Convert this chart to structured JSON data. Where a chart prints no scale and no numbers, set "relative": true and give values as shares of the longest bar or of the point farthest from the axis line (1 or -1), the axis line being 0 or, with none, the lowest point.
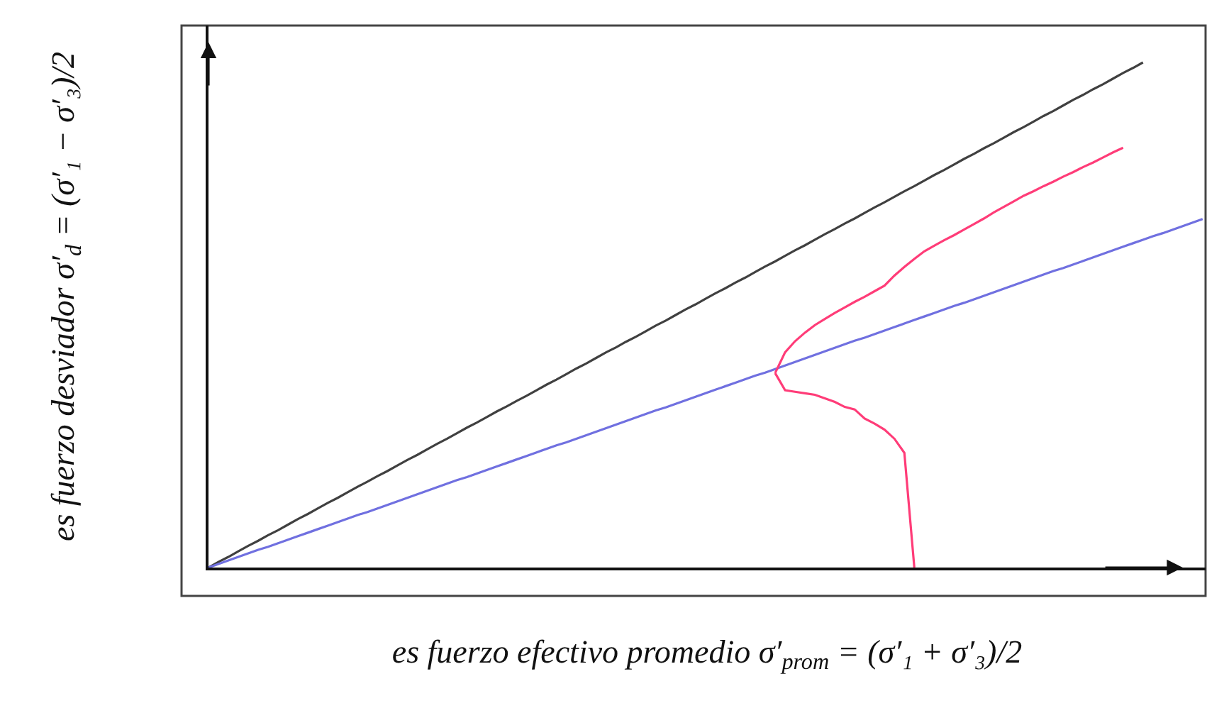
{
  "chart_data": {
    "type": "line",
    "relative": true,
    "xlabel": "es fuerzo efectivo promedio σ′$_{prom}$ = (σ′₁ + σ′₃)/2",
    "ylabel": "es fuerzo desviador σ′$_{d}$ = (σ′₁ − σ′₃)/2",
    "categories": [
      null,
      null,
      null,
      null,
      null,
      null,
      null,
      null,
      null,
      null,
      null,
      null,
      null,
      null,
      null,
      null,
      null,
      null,
      null,
      null,
      null,
      null,
      null,
      null,
      null,
      null,
      null,
      null,
      null,
      null,
      null,
      null,
      null,
      null,
      null,
      null,
      null,
      null,
      null,
      null,
      null,
      null,
      null,
      null,
      null,
      null,
      null,
      null,
      null,
      null,
      null,
      null,
      null,
      null,
      null,
      null,
      null,
      null,
      null,
      null,
      null,
      null,
      null,
      null,
      null,
      null,
      null,
      null,
      null,
      null,
      null,
      null,
      null,
      null,
      null,
      null,
      null,
      null,
      null,
      null,
      null,
      null,
      null,
      null,
      null,
      null,
      null,
      null,
      null,
      null,
      null,
      null,
      null,
      null,
      null,
      null,
      null,
      null,
      null,
      null,
      null
    ],
    "series": [
      {
        "color": "#404040",
        "values": [
          0,
          0.011,
          0.021,
          0.032,
          0.043,
          0.053,
          0.064,
          0.074,
          0.085,
          0.096,
          0.106,
          0.117,
          0.128,
          0.138,
          0.149,
          0.16,
          0.17,
          0.181,
          0.191,
          0.202,
          0.213,
          0.223,
          0.234,
          0.245,
          0.255,
          0.266,
          0.277,
          0.287,
          0.298,
          0.309,
          0.319,
          0.33,
          0.34,
          0.351,
          0.362,
          0.372,
          0.383,
          0.394,
          0.404,
          0.415,
          0.426,
          0.436,
          0.447,
          0.457,
          0.468,
          0.479,
          0.489,
          0.5,
          0.511,
          0.521,
          0.532,
          0.543,
          0.553,
          0.564,
          0.574,
          0.585,
          0.596,
          0.606,
          0.617,
          0.628,
          0.638,
          0.649,
          0.66,
          0.67,
          0.681,
          0.691,
          0.702,
          0.713,
          0.723,
          0.734,
          0.745,
          0.755,
          0.766,
          0.777,
          0.787,
          0.798,
          0.809,
          0.819,
          0.83,
          0.84,
          0.851,
          0.862,
          0.872,
          0.883,
          0.894,
          0.904,
          0.915,
          0.926,
          0.936,
          0.947,
          0.957,
          0.968,
          0.979,
          0.989,
          1.0,
          null,
          null,
          null,
          null,
          null,
          null
        ]
      },
      {
        "color": "#7070e0",
        "values": [
          0,
          0.007,
          0.014,
          0.021,
          0.028,
          0.035,
          0.041,
          0.048,
          0.055,
          0.062,
          0.069,
          0.076,
          0.083,
          0.09,
          0.097,
          0.104,
          0.11,
          0.117,
          0.124,
          0.131,
          0.138,
          0.145,
          0.152,
          0.159,
          0.166,
          0.173,
          0.179,
          0.186,
          0.193,
          0.2,
          0.207,
          0.214,
          0.221,
          0.228,
          0.235,
          0.242,
          0.248,
          0.255,
          0.262,
          0.269,
          0.276,
          0.283,
          0.29,
          0.297,
          0.304,
          0.311,
          0.317,
          0.324,
          0.331,
          0.338,
          0.345,
          0.352,
          0.359,
          0.366,
          0.373,
          0.38,
          0.386,
          0.393,
          0.4,
          0.407,
          0.414,
          0.421,
          0.428,
          0.435,
          0.442,
          0.449,
          0.455,
          0.462,
          0.469,
          0.476,
          0.483,
          0.49,
          0.497,
          0.504,
          0.511,
          0.518,
          0.524,
          0.531,
          0.538,
          0.545,
          0.552,
          0.559,
          0.566,
          0.573,
          0.58,
          0.587,
          0.593,
          0.6,
          0.607,
          0.614,
          0.621,
          0.628,
          0.635,
          0.642,
          0.649,
          0.656,
          0.662,
          0.669,
          0.676,
          0.683,
          0.69
        ]
      },
      {
        "color": "#ff3c78",
        "values": [
          null,
          null,
          null,
          null,
          null,
          null,
          null,
          null,
          null,
          null,
          null,
          null,
          null,
          null,
          null,
          null,
          null,
          null,
          null,
          null,
          null,
          null,
          null,
          null,
          null,
          null,
          null,
          null,
          null,
          null,
          null,
          null,
          null,
          null,
          null,
          null,
          null,
          null,
          null,
          null,
          null,
          null,
          null,
          null,
          null,
          null,
          null,
          null,
          null,
          null,
          null,
          null,
          null,
          null,
          null,
          null,
          null,
          0.385,
          0.426,
          0.448,
          0.465,
          0.48,
          0.492,
          0.504,
          0.515,
          0.526,
          0.536,
          0.547,
          0.558,
          0.578,
          0.595,
          0.611,
          0.626,
          0.637,
          0.648,
          0.658,
          0.669,
          0.68,
          0.691,
          0.703,
          0.714,
          0.725,
          0.736,
          0.745,
          0.755,
          0.764,
          0.774,
          0.783,
          0.793,
          0.802,
          0.812,
          0.822,
          0.831,
          null,
          null,
          null,
          null,
          null,
          null,
          null,
          null
        ]
      },
      {
        "color": "#ff3c78",
        "values": [
          null,
          null,
          null,
          null,
          null,
          null,
          null,
          null,
          null,
          null,
          null,
          null,
          null,
          null,
          null,
          null,
          null,
          null,
          null,
          null,
          null,
          null,
          null,
          null,
          null,
          null,
          null,
          null,
          null,
          null,
          null,
          null,
          null,
          null,
          null,
          null,
          null,
          null,
          null,
          null,
          null,
          null,
          null,
          null,
          null,
          null,
          null,
          null,
          null,
          null,
          null,
          null,
          null,
          null,
          null,
          null,
          null,
          0.385,
          0.351,
          0.348,
          0.345,
          0.342,
          0.335,
          0.328,
          0.318,
          0.313,
          0.295,
          0.285,
          0.273,
          0.255,
          0.227,
          0,
          null,
          null,
          null,
          null,
          null,
          null,
          null,
          null,
          null,
          null,
          null,
          null,
          null,
          null,
          null,
          null,
          null,
          null,
          null,
          null,
          null,
          null,
          null,
          null,
          null,
          null,
          null,
          null,
          null
        ]
      }
    ],
    "marker": "none",
    "line_style": "solid"
  }
}
